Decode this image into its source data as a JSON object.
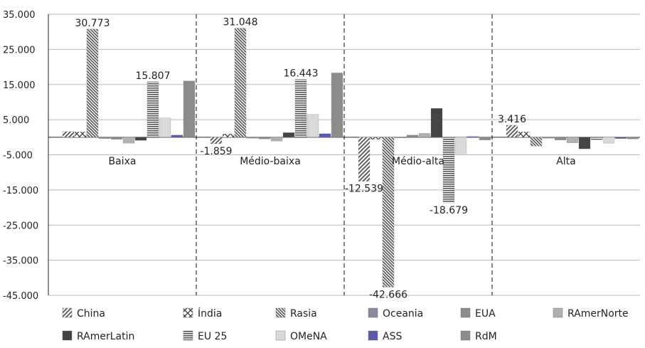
{
  "chart_data": {
    "type": "bar",
    "title": "",
    "xlabel": "",
    "ylabel": "",
    "ylim": [
      -45000,
      35000
    ],
    "yticks": [
      35000,
      25000,
      15000,
      5000,
      -5000,
      -15000,
      -25000,
      -35000,
      -45000
    ],
    "ytick_labels": [
      "35.000",
      "25.000",
      "15.000",
      "5.000",
      "-5.000",
      "-15.000",
      "-25.000",
      "-35.000",
      "-45.000"
    ],
    "grid": true,
    "legend_position": "bottom",
    "categories": [
      "Baixa",
      "Médio-baixa",
      "Médio-alta",
      "Alta"
    ],
    "series": [
      {
        "name": "China",
        "values": [
          1600,
          -1859,
          -12539,
          3416
        ]
      },
      {
        "name": "Índia",
        "values": [
          1500,
          900,
          -600,
          1500
        ]
      },
      {
        "name": "Rasia",
        "values": [
          30773,
          31048,
          -42666,
          -2500
        ]
      },
      {
        "name": "Oceania",
        "values": [
          -400,
          -300,
          -200,
          -300
        ]
      },
      {
        "name": "EUA",
        "values": [
          -600,
          -500,
          600,
          -800
        ]
      },
      {
        "name": "RAmerNorte",
        "values": [
          -1700,
          -1100,
          1100,
          -1600
        ]
      },
      {
        "name": "RAmerLatin",
        "values": [
          -900,
          1300,
          8200,
          -3300
        ]
      },
      {
        "name": "EU 25",
        "values": [
          15807,
          16443,
          -18679,
          -700
        ]
      },
      {
        "name": "OMeNA",
        "values": [
          5500,
          6500,
          -4700,
          -1700
        ]
      },
      {
        "name": "ASS",
        "values": [
          600,
          1000,
          200,
          -400
        ]
      },
      {
        "name": "RdM",
        "values": [
          16000,
          18300,
          -800,
          -500
        ]
      }
    ],
    "data_labels": [
      {
        "category": "Baixa",
        "series": "Rasia",
        "text": "30.773"
      },
      {
        "category": "Baixa",
        "series": "EU 25",
        "text": "15.807"
      },
      {
        "category": "Médio-baixa",
        "series": "China",
        "text": "-1.859"
      },
      {
        "category": "Médio-baixa",
        "series": "Rasia",
        "text": "31.048"
      },
      {
        "category": "Médio-baixa",
        "series": "EU 25",
        "text": "16.443"
      },
      {
        "category": "Médio-alta",
        "series": "China",
        "text": "-12.539"
      },
      {
        "category": "Médio-alta",
        "series": "Rasia",
        "text": "-42.666"
      },
      {
        "category": "Médio-alta",
        "series": "EU 25",
        "text": "-18.679"
      },
      {
        "category": "Alta",
        "series": "China",
        "text": "3.416"
      }
    ],
    "colors": {
      "China": "#555555",
      "Índia": "#333333",
      "Rasia": "#555555",
      "Oceania": "#8a8aa0",
      "EUA": "#8c8c8c",
      "RAmerNorte": "#b0b0b0",
      "RAmerLatin": "#444444",
      "EU 25": "#555555",
      "OMeNA": "#d9d9d9",
      "ASS": "#5a5aa8",
      "RdM": "#8c8c8c"
    }
  }
}
